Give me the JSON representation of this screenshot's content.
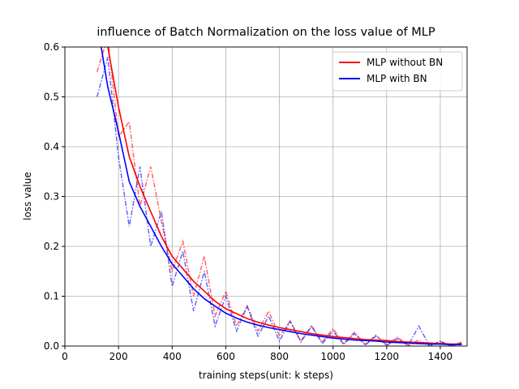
{
  "chart_data": {
    "type": "line",
    "title": "influence of Batch Normalization on the loss value of MLP",
    "xlabel": "training steps(unit: k steps)",
    "ylabel": "loss value",
    "x": [
      120,
      160,
      200,
      240,
      280,
      320,
      360,
      400,
      440,
      480,
      520,
      560,
      600,
      640,
      680,
      720,
      760,
      800,
      840,
      880,
      920,
      960,
      1000,
      1040,
      1080,
      1120,
      1160,
      1200,
      1240,
      1280,
      1320,
      1360,
      1400,
      1440,
      1480
    ],
    "series": [
      {
        "name": "MLP without BN",
        "color": "#ff0000",
        "values": [
          0.75,
          0.6,
          0.48,
          0.38,
          0.32,
          0.27,
          0.22,
          0.18,
          0.155,
          0.13,
          0.11,
          0.09,
          0.075,
          0.065,
          0.055,
          0.048,
          0.042,
          0.037,
          0.033,
          0.029,
          0.025,
          0.022,
          0.019,
          0.017,
          0.015,
          0.013,
          0.012,
          0.011,
          0.009,
          0.008,
          0.007,
          0.006,
          0.005,
          0.004,
          0.004
        ],
        "raw_values": [
          0.55,
          0.62,
          0.42,
          0.45,
          0.28,
          0.36,
          0.25,
          0.15,
          0.21,
          0.1,
          0.18,
          0.06,
          0.11,
          0.04,
          0.08,
          0.03,
          0.07,
          0.02,
          0.05,
          0.01,
          0.04,
          0.008,
          0.035,
          0.005,
          0.028,
          0.003,
          0.022,
          0.002,
          0.018,
          0.001,
          0.012,
          0.001,
          0.009,
          0.0,
          0.008
        ]
      },
      {
        "name": "MLP with BN",
        "color": "#0000ff",
        "values": [
          0.65,
          0.52,
          0.43,
          0.33,
          0.28,
          0.24,
          0.2,
          0.165,
          0.14,
          0.115,
          0.095,
          0.08,
          0.066,
          0.056,
          0.048,
          0.042,
          0.037,
          0.033,
          0.029,
          0.025,
          0.022,
          0.019,
          0.016,
          0.014,
          0.012,
          0.011,
          0.01,
          0.008,
          0.007,
          0.006,
          0.005,
          0.004,
          0.004,
          0.003,
          0.003
        ],
        "raw_values": [
          0.5,
          0.58,
          0.38,
          0.24,
          0.36,
          0.2,
          0.27,
          0.12,
          0.19,
          0.07,
          0.15,
          0.04,
          0.1,
          0.03,
          0.08,
          0.02,
          0.06,
          0.01,
          0.05,
          0.008,
          0.04,
          0.005,
          0.03,
          0.003,
          0.025,
          0.002,
          0.02,
          0.001,
          0.015,
          0.001,
          0.04,
          0.0,
          0.01,
          0.0,
          0.006
        ]
      }
    ],
    "xlim": [
      0,
      1500
    ],
    "xticks": [
      0,
      200,
      400,
      600,
      800,
      1000,
      1200,
      1400
    ],
    "ylim": [
      0,
      0.6
    ],
    "yticks": [
      {
        "value": 0,
        "label": "0.0"
      },
      {
        "value": 0.1,
        "label": "0.1"
      },
      {
        "value": 0.2,
        "label": "0.2"
      },
      {
        "value": 0.3,
        "label": "0.3"
      },
      {
        "value": 0.4,
        "label": "0.4"
      },
      {
        "value": 0.5,
        "label": "0.5"
      },
      {
        "value": 0.6,
        "label": "0.6"
      }
    ],
    "grid": true,
    "legend": "upper right"
  }
}
